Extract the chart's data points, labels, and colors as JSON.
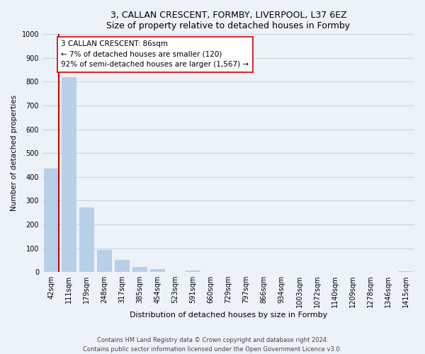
{
  "title": "3, CALLAN CRESCENT, FORMBY, LIVERPOOL, L37 6EZ",
  "subtitle": "Size of property relative to detached houses in Formby",
  "xlabel": "Distribution of detached houses by size in Formby",
  "ylabel": "Number of detached properties",
  "bar_labels": [
    "42sqm",
    "111sqm",
    "179sqm",
    "248sqm",
    "317sqm",
    "385sqm",
    "454sqm",
    "523sqm",
    "591sqm",
    "660sqm",
    "729sqm",
    "797sqm",
    "866sqm",
    "934sqm",
    "1003sqm",
    "1072sqm",
    "1140sqm",
    "1209sqm",
    "1278sqm",
    "1346sqm",
    "1415sqm"
  ],
  "bar_values": [
    435,
    820,
    270,
    93,
    50,
    22,
    13,
    0,
    5,
    0,
    0,
    0,
    0,
    0,
    0,
    0,
    0,
    0,
    0,
    0,
    4
  ],
  "bar_color": "#b8cfe8",
  "vline_color": "#cc0000",
  "ylim": [
    0,
    1000
  ],
  "yticks": [
    0,
    100,
    200,
    300,
    400,
    500,
    600,
    700,
    800,
    900,
    1000
  ],
  "annotation_title": "3 CALLAN CRESCENT: 86sqm",
  "annotation_line1": "← 7% of detached houses are smaller (120)",
  "annotation_line2": "92% of semi-detached houses are larger (1,567) →",
  "footer_line1": "Contains HM Land Registry data © Crown copyright and database right 2024.",
  "footer_line2": "Contains public sector information licensed under the Open Government Licence v3.0.",
  "bg_color": "#edf2f9",
  "plot_bg_color": "#edf2f9",
  "grid_color": "#c5d3e3"
}
